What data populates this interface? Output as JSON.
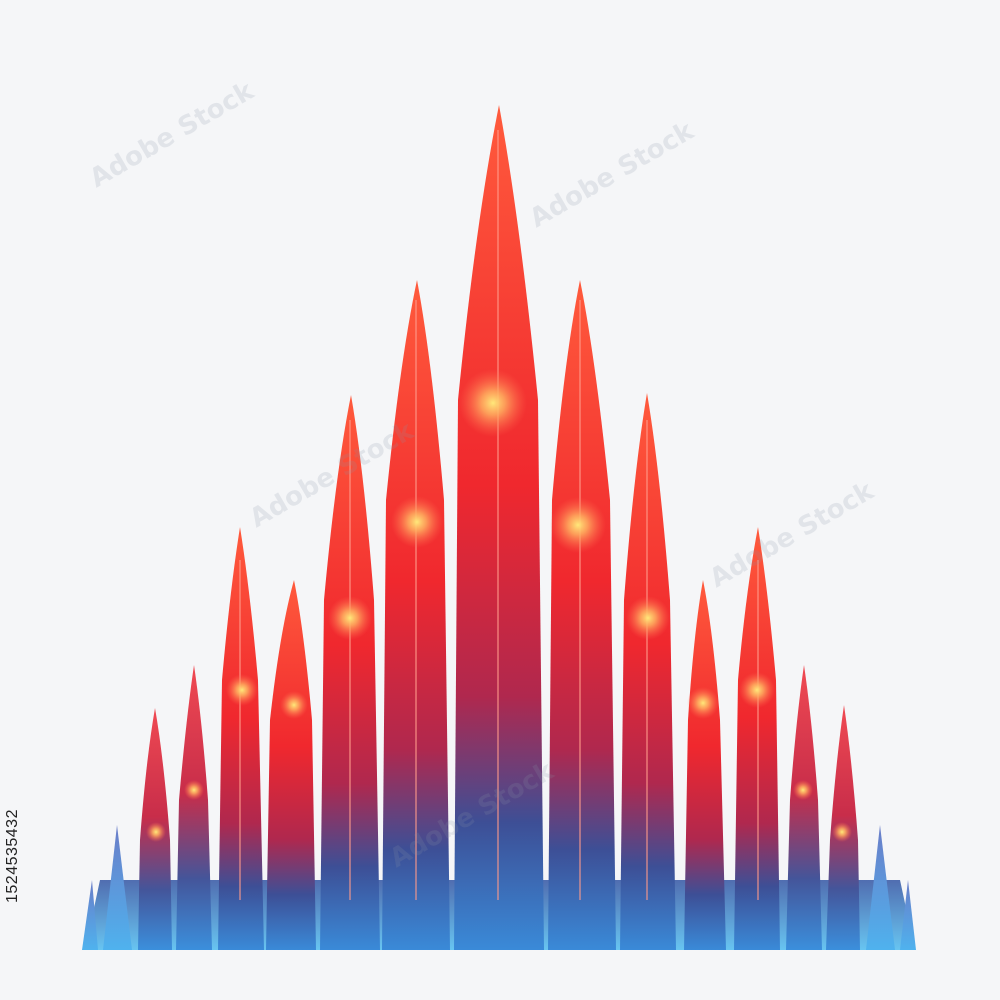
{
  "image": {
    "description_colors": {
      "background": "#f5f6f8",
      "spire_top": "#ff3b2f",
      "spire_mid": "#d8283c",
      "spire_base": "#2f74c8",
      "base_glow": "#5bb6ee",
      "glow_spark": "#ffe36a"
    },
    "stock_id": "1524535432",
    "watermark_text": "Adobe Stock"
  }
}
